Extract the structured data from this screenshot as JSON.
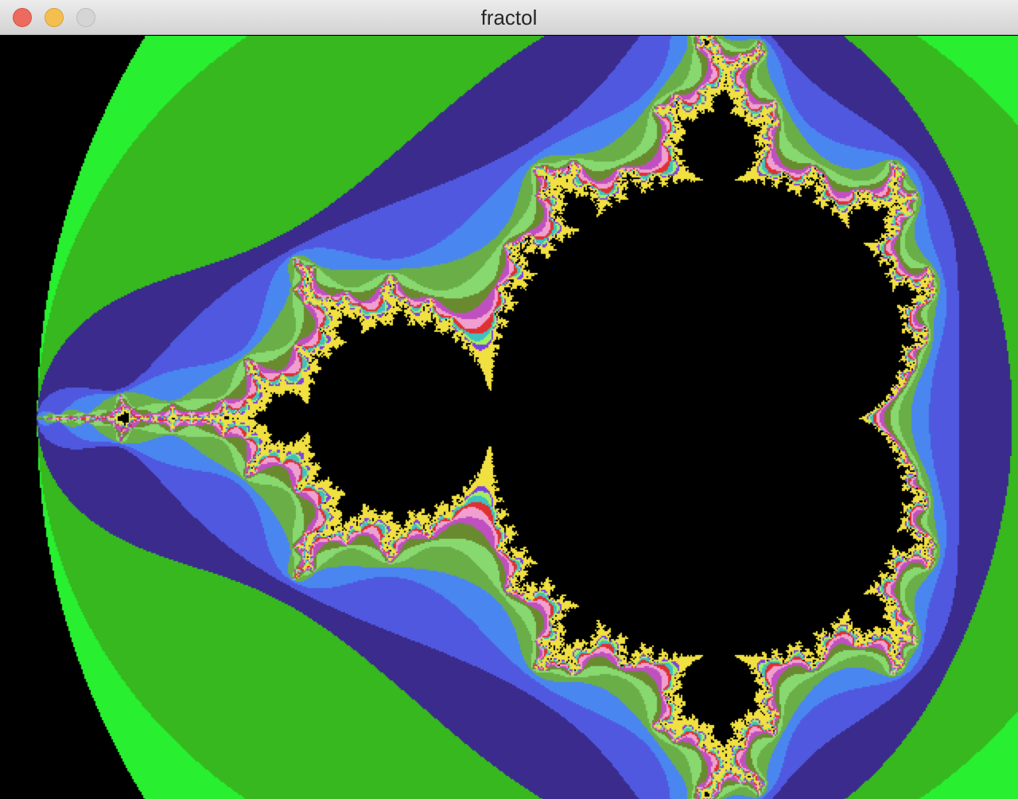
{
  "window": {
    "title": "fractol",
    "controls": {
      "close": "close-button",
      "minimize": "minimize-button",
      "zoom": "zoom-button"
    }
  },
  "fractal": {
    "type": "mandelbrot",
    "max_iterations": 40,
    "view": {
      "re_min": -2.1,
      "re_max": 0.7,
      "im_center": 0.0
    },
    "interior_color": "#000000",
    "background_color": "#000000",
    "palette": [
      "#28f030",
      "#36b81e",
      "#3a2b8c",
      "#5058e0",
      "#4a86f0",
      "#6aae48",
      "#88d870",
      "#6a8a30",
      "#c050c0",
      "#f0a0d0",
      "#e03030",
      "#40c0c0",
      "#a0f060",
      "#8040e0",
      "#f0e040"
    ]
  }
}
